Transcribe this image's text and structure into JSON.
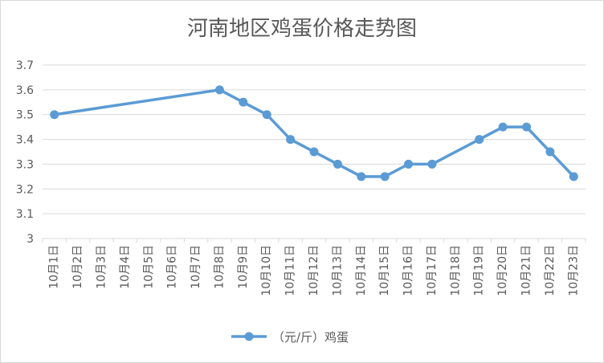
{
  "chart_data": {
    "type": "line",
    "title": "河南地区鸡蛋价格走势图",
    "categories": [
      "10月1日",
      "10月2日",
      "10月3日",
      "10月4日",
      "10月5日",
      "10月6日",
      "10月7日",
      "10月8日",
      "10月9日",
      "10月10日",
      "10月11日",
      "10月12日",
      "10月13日",
      "10月14日",
      "10月15日",
      "10月16日",
      "10月17日",
      "10月18日",
      "10月19日",
      "10月20日",
      "10月21日",
      "10月22日",
      "10月23日"
    ],
    "series": [
      {
        "name": "（元/斤）鸡蛋",
        "values": [
          3.5,
          null,
          null,
          null,
          null,
          null,
          null,
          3.6,
          3.55,
          3.5,
          3.4,
          3.35,
          3.3,
          3.25,
          3.25,
          3.3,
          3.3,
          null,
          3.4,
          3.45,
          3.45,
          3.35,
          3.25
        ],
        "color": "#5b9bd5"
      }
    ],
    "ylim": [
      3,
      3.7
    ],
    "yticks": [
      "3",
      "3.1",
      "3.2",
      "3.3",
      "3.4",
      "3.5",
      "3.6",
      "3.7"
    ],
    "xlabel": "",
    "ylabel": "",
    "grid": true,
    "legend": "bottom"
  }
}
